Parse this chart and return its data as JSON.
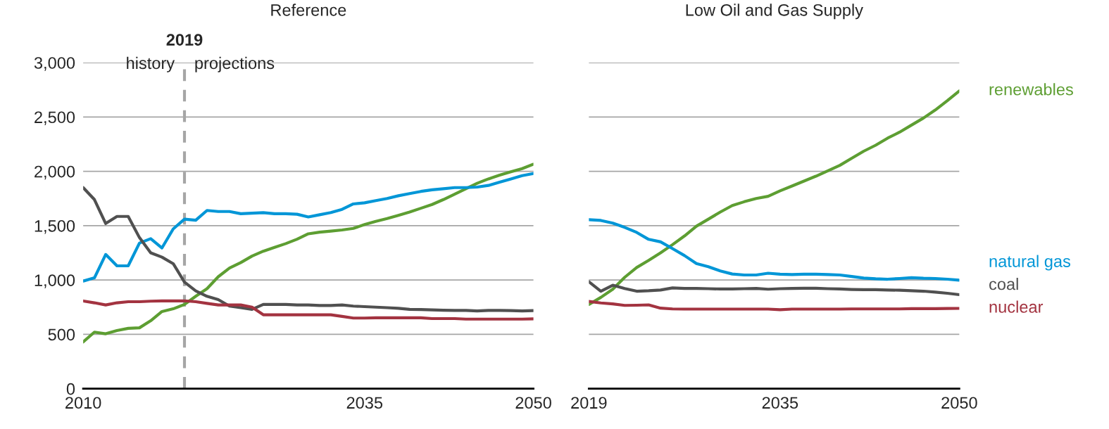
{
  "chart_data": [
    {
      "type": "line",
      "title": "Reference",
      "xlim": [
        2010,
        2050
      ],
      "xticks": [
        2010,
        2035,
        2050
      ],
      "ylim": [
        0,
        3000
      ],
      "yticks": [
        0,
        {
          "value": 500,
          "label": "500"
        },
        {
          "value": 1000,
          "label": "1,000"
        },
        {
          "value": 1500,
          "label": "1,500"
        },
        {
          "value": 2000,
          "label": "2,000"
        },
        {
          "value": 2500,
          "label": "2,500"
        },
        {
          "value": 3000,
          "label": "3,000"
        }
      ],
      "grid": "y",
      "legend": false,
      "ref_lines": [
        {
          "axis": "x",
          "value": 2019,
          "label": "2019",
          "color": "#a6a6a6",
          "line_style": "dashed"
        }
      ],
      "annotations": [
        "history",
        "projections"
      ],
      "x": [
        2010,
        2011,
        2012,
        2013,
        2014,
        2015,
        2016,
        2017,
        2018,
        2019,
        2020,
        2021,
        2022,
        2023,
        2024,
        2025,
        2026,
        2027,
        2028,
        2029,
        2030,
        2031,
        2032,
        2033,
        2034,
        2035,
        2036,
        2037,
        2038,
        2039,
        2040,
        2041,
        2042,
        2043,
        2044,
        2045,
        2046,
        2047,
        2048,
        2049,
        2050
      ],
      "series": [
        {
          "color": "#5d9e32",
          "values": [
            430,
            520,
            505,
            535,
            555,
            560,
            625,
            710,
            735,
            775,
            850,
            920,
            1030,
            1110,
            1160,
            1220,
            1265,
            1300,
            1335,
            1375,
            1425,
            1440,
            1450,
            1460,
            1475,
            1510,
            1540,
            1565,
            1595,
            1625,
            1660,
            1695,
            1740,
            1790,
            1840,
            1890,
            1930,
            1965,
            1995,
            2025,
            2065
          ]
        },
        {
          "color": "#0096d7",
          "values": [
            990,
            1020,
            1235,
            1130,
            1130,
            1340,
            1380,
            1295,
            1470,
            1560,
            1550,
            1640,
            1630,
            1630,
            1610,
            1615,
            1620,
            1610,
            1610,
            1605,
            1580,
            1600,
            1620,
            1650,
            1700,
            1710,
            1730,
            1750,
            1775,
            1795,
            1815,
            1830,
            1840,
            1850,
            1850,
            1855,
            1870,
            1900,
            1930,
            1960,
            1980
          ]
        },
        {
          "color": "#505050",
          "values": [
            1850,
            1740,
            1520,
            1585,
            1585,
            1390,
            1250,
            1210,
            1150,
            980,
            900,
            850,
            820,
            760,
            745,
            730,
            775,
            775,
            775,
            770,
            770,
            765,
            765,
            770,
            760,
            755,
            750,
            745,
            740,
            730,
            728,
            725,
            722,
            720,
            720,
            715,
            720,
            720,
            718,
            715,
            718
          ]
        },
        {
          "color": "#a33340",
          "values": [
            807,
            790,
            770,
            790,
            800,
            800,
            805,
            807,
            808,
            808,
            800,
            785,
            770,
            770,
            770,
            750,
            680,
            680,
            680,
            680,
            680,
            680,
            680,
            665,
            650,
            650,
            652,
            652,
            652,
            652,
            652,
            645,
            645,
            645,
            640,
            640,
            640,
            640,
            640,
            640,
            642
          ]
        }
      ]
    },
    {
      "type": "line",
      "title": "Low Oil and Gas Supply",
      "xlim": [
        2019,
        2050
      ],
      "xticks": [
        2019,
        2035,
        2050
      ],
      "ylim": [
        0,
        3000
      ],
      "yticks": [
        0,
        500,
        1000,
        1500,
        2000,
        2500,
        3000
      ],
      "tick_labels": "x",
      "grid": "y",
      "legend": false,
      "x": [
        2019,
        2020,
        2021,
        2022,
        2023,
        2024,
        2025,
        2026,
        2027,
        2028,
        2029,
        2030,
        2031,
        2032,
        2033,
        2034,
        2035,
        2036,
        2037,
        2038,
        2039,
        2040,
        2041,
        2042,
        2043,
        2044,
        2045,
        2046,
        2047,
        2048,
        2049,
        2050
      ],
      "series": [
        {
          "name": "renewables",
          "color": "#5d9e32",
          "values": [
            775,
            840,
            915,
            1025,
            1115,
            1180,
            1250,
            1325,
            1405,
            1495,
            1560,
            1625,
            1685,
            1720,
            1750,
            1770,
            1820,
            1865,
            1910,
            1955,
            2005,
            2055,
            2120,
            2185,
            2240,
            2305,
            2360,
            2425,
            2490,
            2565,
            2650,
            2740
          ]
        },
        {
          "name": "natural gas",
          "color": "#0096d7",
          "values": [
            1555,
            1548,
            1523,
            1484,
            1438,
            1374,
            1351,
            1289,
            1225,
            1151,
            1122,
            1083,
            1055,
            1046,
            1046,
            1062,
            1053,
            1050,
            1053,
            1053,
            1050,
            1046,
            1032,
            1018,
            1011,
            1007,
            1014,
            1021,
            1016,
            1014,
            1007,
            998
          ]
        },
        {
          "name": "coal",
          "color": "#505050",
          "values": [
            984,
            897,
            952,
            922,
            897,
            901,
            908,
            927,
            922,
            922,
            920,
            917,
            917,
            920,
            922,
            915,
            920,
            922,
            924,
            924,
            920,
            917,
            913,
            911,
            911,
            908,
            906,
            901,
            897,
            888,
            878,
            865
          ]
        },
        {
          "name": "nuclear",
          "color": "#a33340",
          "values": [
            803,
            789,
            780,
            766,
            768,
            771,
            741,
            734,
            732,
            732,
            732,
            732,
            732,
            732,
            732,
            732,
            727,
            732,
            732,
            732,
            732,
            732,
            734,
            734,
            734,
            734,
            734,
            736,
            736,
            736,
            738,
            739
          ]
        }
      ]
    }
  ]
}
